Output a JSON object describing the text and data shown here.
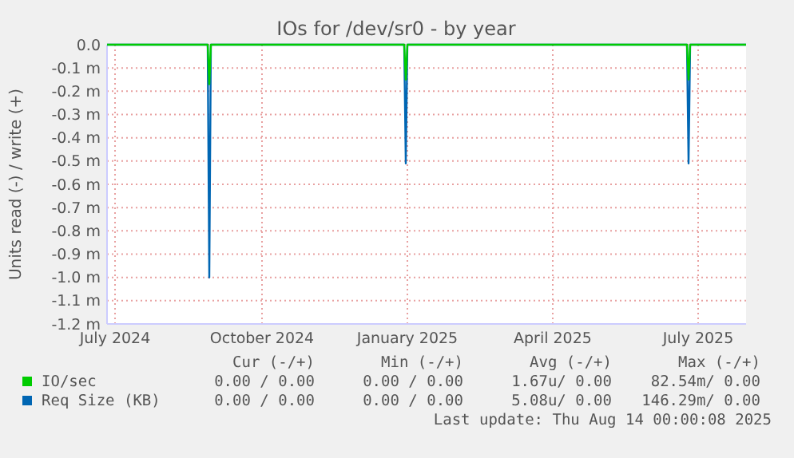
{
  "chart_data": {
    "type": "line",
    "title": "IOs for /dev/sr0 - by year",
    "ylabel": "Units read (-) / write (+)",
    "xlim": [
      "2024-07-10",
      "2025-08-14"
    ],
    "xticks": [
      {
        "value": "2024-07-15",
        "label": "July 2024"
      },
      {
        "value": "2024-10-15",
        "label": "October 2024"
      },
      {
        "value": "2025-01-14",
        "label": "January 2025"
      },
      {
        "value": "2025-04-15",
        "label": "April 2025"
      },
      {
        "value": "2025-07-15",
        "label": "July 2025"
      }
    ],
    "ylim": [
      -1.2,
      0
    ],
    "yticks": [
      {
        "value": 0,
        "label": "0.0"
      },
      {
        "value": -0.1,
        "label": "-0.1 m"
      },
      {
        "value": -0.2,
        "label": "-0.2 m"
      },
      {
        "value": -0.3,
        "label": "-0.3 m"
      },
      {
        "value": -0.4,
        "label": "-0.4 m"
      },
      {
        "value": -0.5,
        "label": "-0.5 m"
      },
      {
        "value": -0.6,
        "label": "-0.6 m"
      },
      {
        "value": -0.7,
        "label": "-0.7 m"
      },
      {
        "value": -0.8,
        "label": "-0.8 m"
      },
      {
        "value": -0.9,
        "label": "-0.9 m"
      },
      {
        "value": -1.0,
        "label": "-1.0 m"
      },
      {
        "value": -1.1,
        "label": "-1.1 m"
      },
      {
        "value": -1.2,
        "label": "-1.2 m"
      }
    ],
    "grid": true,
    "legend": "bottom",
    "series": [
      {
        "name": "Req Size (KB)",
        "color": "#0066b3",
        "x": [
          "2024-07-10",
          "2024-09-11",
          "2024-09-12",
          "2024-09-13",
          "2025-01-12",
          "2025-01-13",
          "2025-01-14",
          "2025-07-08",
          "2025-07-09",
          "2025-07-10",
          "2025-08-14"
        ],
        "values": [
          0,
          0,
          -1.0,
          0,
          0,
          -0.51,
          0,
          0,
          -0.51,
          0,
          0
        ]
      },
      {
        "name": "IO/sec",
        "color": "#00cc00",
        "x": [
          "2024-07-10",
          "2024-09-11",
          "2024-09-12",
          "2024-09-13",
          "2025-01-12",
          "2025-01-13",
          "2025-01-14",
          "2025-07-08",
          "2025-07-09",
          "2025-07-10",
          "2025-08-14"
        ],
        "values": [
          0,
          0,
          -0.17,
          0,
          0,
          -0.15,
          0,
          0,
          -0.15,
          0,
          0
        ]
      }
    ],
    "annotations": [
      "Cur (-/+)",
      "Min (-/+)",
      "Avg (-/+)",
      "Max (-/+)",
      "0.00 / 0.00",
      "0.00 / 0.00",
      "1.67u/ 0.00",
      "82.54m/ 0.00",
      "0.00 / 0.00",
      "0.00 / 0.00",
      "5.08u/ 0.00",
      "146.29m/ 0.00",
      "Last update: Thu Aug 14 00:00:08 2025"
    ]
  }
}
